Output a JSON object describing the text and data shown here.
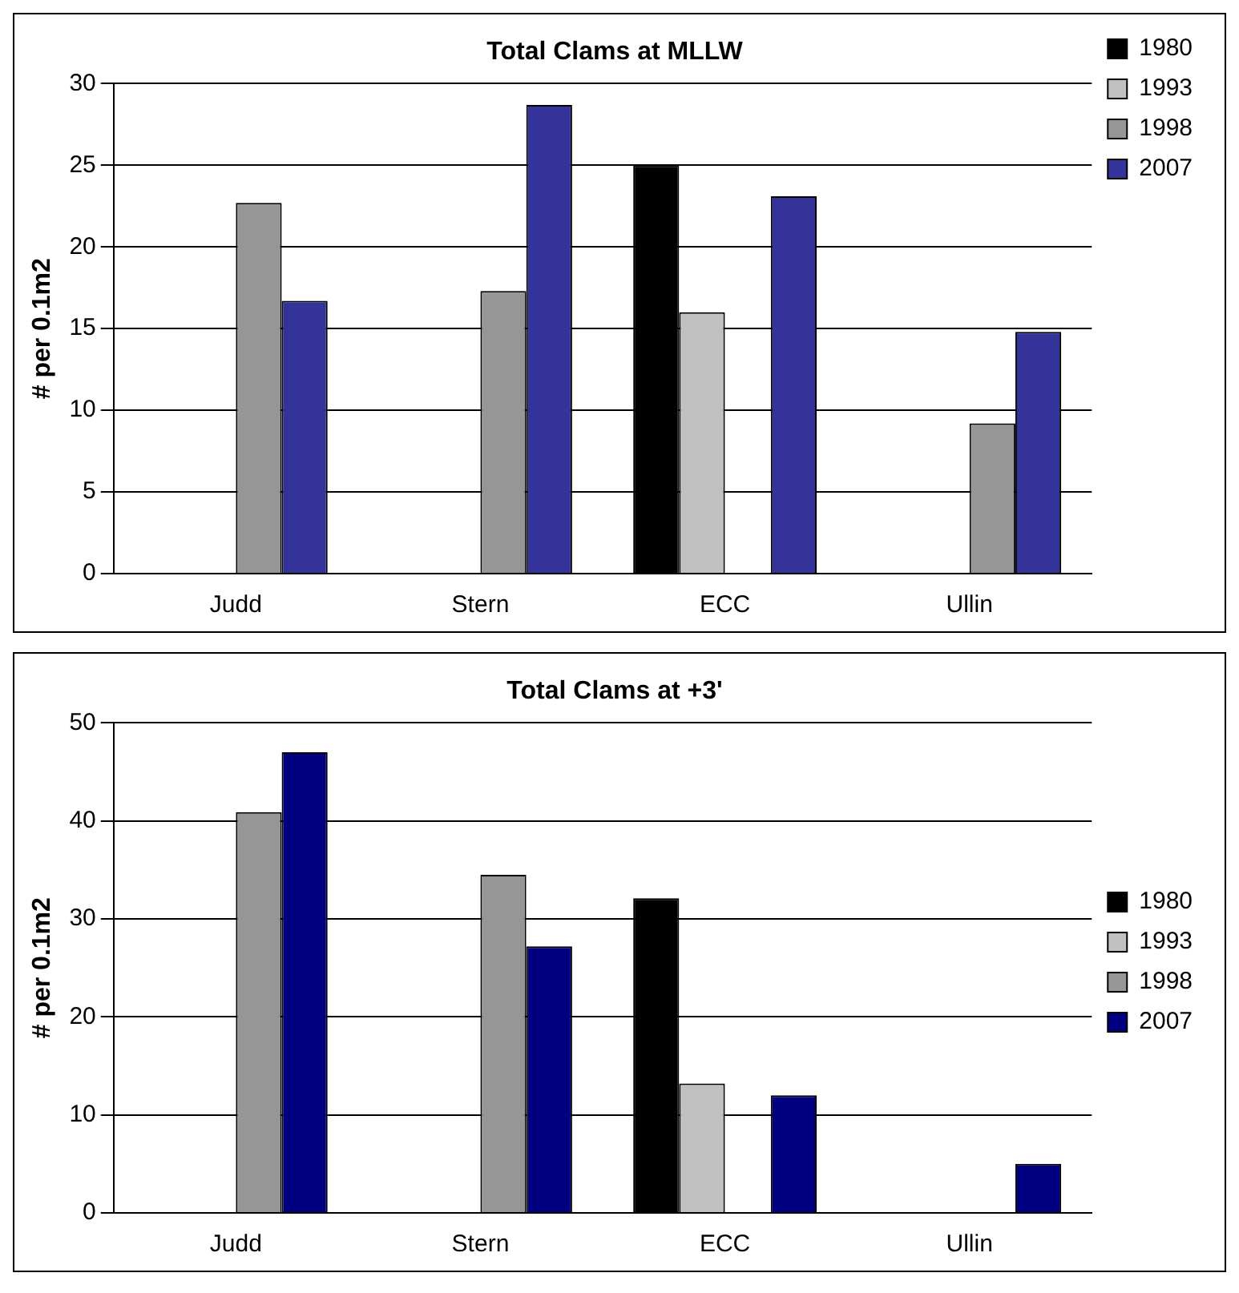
{
  "chart_data": [
    {
      "type": "bar",
      "title": "Total Clams at MLLW",
      "ylabel": "# per 0.1m2",
      "categories": [
        "Judd",
        "Stern",
        "ECC",
        "Ullin"
      ],
      "series": [
        {
          "name": "1980",
          "color": "#000000",
          "values": [
            null,
            null,
            25,
            null
          ]
        },
        {
          "name": "1993",
          "color": "#c0c0c0",
          "values": [
            null,
            null,
            16,
            null
          ]
        },
        {
          "name": "1998",
          "color": "#969696",
          "values": [
            22.7,
            17.3,
            null,
            9.2
          ]
        },
        {
          "name": "2007",
          "color": "#333399",
          "values": [
            16.7,
            28.7,
            23.1,
            14.8
          ]
        }
      ],
      "ylim": [
        0,
        30
      ],
      "yticks": [
        0,
        5,
        10,
        15,
        20,
        25,
        30
      ],
      "grid": "y",
      "legend": "top right"
    },
    {
      "type": "bar",
      "title": "Total Clams at +3'",
      "ylabel": "# per 0.1m2",
      "categories": [
        "Judd",
        "Stern",
        "ECC",
        "Ullin"
      ],
      "series": [
        {
          "name": "1980",
          "color": "#000000",
          "values": [
            null,
            null,
            32.1,
            null
          ]
        },
        {
          "name": "1993",
          "color": "#c0c0c0",
          "values": [
            null,
            null,
            13.2,
            null
          ]
        },
        {
          "name": "1998",
          "color": "#969696",
          "values": [
            40.9,
            34.5,
            null,
            null
          ]
        },
        {
          "name": "2007",
          "color": "#000080",
          "values": [
            47,
            27.2,
            12,
            5
          ]
        }
      ],
      "ylim": [
        0,
        50
      ],
      "yticks": [
        0,
        10,
        20,
        30,
        40,
        50
      ],
      "grid": "y",
      "legend": "right"
    }
  ]
}
